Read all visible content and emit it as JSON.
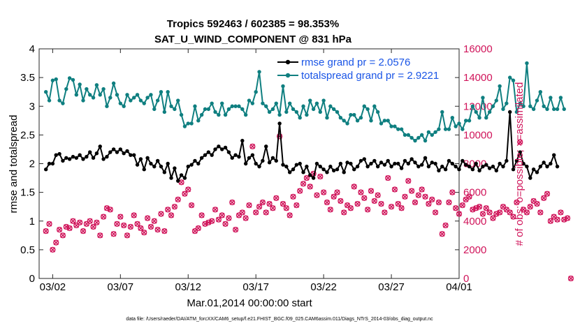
{
  "chart_data": {
    "type": "line",
    "title_line1": "Tropics 592463 / 602385 = 98.353%",
    "title_line2": "SAT_U_WIND_COMPONENT @ 831 hPa",
    "xlabel": "Mar.01,2014 00:00:00 start",
    "ylabel_left": "rmse and totalspread",
    "ylabel_right": "# of obs: o=possible; ×=assimilated",
    "ylim_left": [
      0,
      4
    ],
    "ylim_right": [
      0,
      16000
    ],
    "xlim": [
      1,
      32
    ],
    "yticks_left": [
      "0",
      "0.5",
      "1",
      "1.5",
      "2",
      "2.5",
      "3",
      "3.5",
      "4"
    ],
    "yticks_right": [
      "0",
      "2000",
      "4000",
      "6000",
      "8000",
      "10000",
      "12000",
      "14000",
      "16000"
    ],
    "xticks": [
      {
        "x": 2,
        "label": "03/02"
      },
      {
        "x": 7,
        "label": "03/07"
      },
      {
        "x": 12,
        "label": "03/12"
      },
      {
        "x": 17,
        "label": "03/17"
      },
      {
        "x": 22,
        "label": "03/22"
      },
      {
        "x": 27,
        "label": "03/27"
      },
      {
        "x": 32,
        "label": "04/01"
      }
    ],
    "legend": [
      {
        "label": "rmse grand pr = 2.0576",
        "color": "#000000"
      },
      {
        "label": "totalspread grand pr = 2.9221",
        "color": "#0f7f80"
      }
    ],
    "series": [
      {
        "name": "rmse",
        "color": "#000000",
        "axis": "left",
        "values": [
          1.9,
          2.0,
          2.0,
          2.15,
          2.17,
          2.05,
          2.1,
          2.08,
          2.12,
          2.1,
          2.15,
          2.08,
          2.12,
          2.2,
          2.1,
          2.18,
          2.3,
          2.08,
          2.12,
          2.2,
          2.25,
          2.2,
          2.25,
          2.18,
          2.22,
          2.15,
          2.15,
          1.98,
          2.08,
          1.9,
          2.1,
          2.0,
          1.95,
          2.05,
          1.95,
          1.85,
          2.0,
          1.75,
          1.92,
          1.7,
          1.8,
          1.75,
          1.95,
          1.98,
          2.05,
          2.0,
          2.1,
          2.15,
          2.2,
          2.15,
          2.25,
          2.3,
          2.25,
          2.28,
          2.2,
          2.1,
          2.15,
          2.12,
          2.4,
          2.0,
          2.1,
          2.15,
          2.0,
          1.95,
          2.05,
          2.3,
          2.02,
          2.1,
          2.05,
          2.7,
          1.98,
          1.95,
          1.85,
          1.9,
          1.98,
          2.0,
          1.85,
          1.95,
          1.8,
          1.75,
          2.0,
          1.95,
          1.9,
          1.85,
          1.95,
          1.88,
          1.9,
          2.0,
          1.85,
          2.02,
          2.0,
          1.9,
          1.95,
          2.05,
          2.08,
          1.95,
          2.0,
          2.05,
          1.95,
          2.02,
          1.98,
          2.05,
          1.95,
          2.0,
          2.0,
          1.92,
          2.05,
          2.0,
          2.08,
          2.02,
          1.95,
          1.98,
          2.1,
          1.95,
          2.02,
          2.0,
          1.88,
          1.95,
          1.9,
          2.05,
          2.0,
          1.95,
          1.9,
          2.05,
          1.98,
          1.95,
          1.9,
          2.0,
          1.88,
          1.95,
          1.98,
          1.92,
          1.95,
          1.88,
          2.0,
          1.95,
          2.05,
          2.9,
          1.9,
          2.05,
          2.2,
          2.0,
          1.95,
          1.75,
          1.9,
          1.85,
          1.95,
          2.02,
          1.95,
          2.0,
          2.15,
          1.95
        ]
      },
      {
        "name": "totalspread",
        "color": "#0f7f80",
        "axis": "left",
        "values": [
          3.25,
          3.1,
          3.45,
          3.47,
          3.1,
          3.05,
          3.3,
          3.49,
          3.46,
          3.2,
          3.38,
          3.1,
          3.3,
          3.2,
          3.15,
          3.37,
          3.2,
          3.3,
          3.0,
          3.15,
          3.4,
          3.2,
          3.05,
          3.0,
          3.2,
          3.1,
          3.15,
          3.2,
          3.1,
          3.05,
          3.15,
          3.2,
          2.95,
          3.1,
          3.25,
          2.9,
          3.25,
          3.0,
          2.95,
          3.1,
          2.85,
          2.65,
          2.7,
          2.7,
          3.0,
          2.75,
          2.85,
          2.95,
          2.95,
          3.05,
          2.9,
          2.85,
          3.05,
          2.85,
          2.95,
          3.0,
          3.0,
          3.0,
          2.95,
          2.85,
          3.1,
          3.05,
          3.25,
          3.6,
          3.05,
          3.0,
          2.9,
          2.95,
          3.05,
          2.85,
          3.35,
          2.9,
          3.05,
          2.95,
          2.9,
          2.8,
          3.0,
          2.85,
          3.1,
          2.95,
          3.05,
          2.9,
          3.1,
          2.8,
          3.0,
          2.95,
          2.9,
          2.8,
          2.75,
          2.7,
          2.85,
          2.85,
          2.75,
          2.8,
          3.0,
          2.95,
          2.75,
          3.0,
          2.9,
          2.7,
          2.75,
          2.75,
          2.65,
          2.65,
          2.6,
          2.6,
          2.5,
          2.5,
          2.45,
          2.4,
          2.45,
          2.5,
          2.4,
          2.55,
          2.5,
          2.55,
          2.6,
          2.9,
          2.6,
          2.6,
          2.8,
          2.65,
          2.7,
          2.6,
          2.75,
          2.75,
          3.0,
          2.9,
          2.8,
          3.15,
          2.8,
          2.9,
          3.0,
          3.1,
          3.35,
          2.95,
          3.05,
          3.5,
          3.45,
          2.9,
          3.05,
          3.0,
          3.75,
          3.0,
          2.95,
          3.1,
          3.25,
          3.0,
          2.95,
          3.15,
          2.95,
          2.95,
          3.15,
          2.95
        ]
      },
      {
        "name": "obs_possible",
        "color": "#d0145a",
        "axis": "right",
        "marker": "o",
        "values": [
          3300,
          3800,
          2000,
          2500,
          3400,
          3000,
          3600,
          3500,
          4000,
          3700,
          3900,
          3300,
          3800,
          4000,
          3600,
          3900,
          3000,
          4300,
          4900,
          4800,
          3100,
          3800,
          4300,
          3700,
          3000,
          3600,
          4400,
          3800,
          3500,
          3200,
          4200,
          3600,
          4000,
          3400,
          4500,
          3300,
          4800,
          4400,
          5000,
          5500,
          6700,
          5900,
          6200,
          5100,
          3300,
          3500,
          4400,
          3800,
          3900,
          4000,
          4800,
          4100,
          4400,
          3800,
          4200,
          5300,
          3400,
          4400,
          4600,
          4200,
          5100,
          9200,
          4600,
          5000,
          5300,
          4600,
          5200,
          4900,
          5600,
          9900,
          5200,
          4900,
          4400,
          5700,
          5100,
          6100,
          6600,
          7000,
          6400,
          7300,
          5800,
          7100,
          6000,
          5300,
          4800,
          5700,
          6000,
          5400,
          4600,
          5100,
          4900,
          6400,
          5200,
          6000,
          5600,
          4800,
          6100,
          5400,
          5800,
          5200,
          4600,
          7000,
          5000,
          6200,
          5200,
          4900,
          5700,
          6800,
          6100,
          5300,
          5800,
          6200,
          5700,
          5200,
          5500,
          4600,
          5300,
          3100,
          3700,
          5300,
          6000,
          4900,
          4500,
          5100,
          5500,
          5700,
          4800,
          4900,
          5000,
          4500,
          4900,
          4600,
          4200,
          4500,
          4600,
          5000,
          4800,
          4600,
          4300,
          5300,
          9500,
          4800,
          4600,
          5000,
          5400,
          5200,
          4600,
          5600,
          5900,
          4000,
          4300,
          4100,
          4600,
          4100,
          4200,
          0
        ]
      },
      {
        "name": "obs_assimilated",
        "color": "#d0145a",
        "axis": "right",
        "marker": "x",
        "values": [
          3300,
          3800,
          2000,
          2500,
          3400,
          3000,
          3600,
          3500,
          4000,
          3700,
          3900,
          3300,
          3800,
          4000,
          3600,
          3900,
          3000,
          4300,
          4900,
          4800,
          3100,
          3800,
          4300,
          3700,
          3000,
          3600,
          4400,
          3800,
          3500,
          3200,
          4200,
          3600,
          4000,
          3400,
          4500,
          3300,
          4800,
          4400,
          5000,
          5500,
          6700,
          5900,
          6200,
          5100,
          3300,
          3500,
          4400,
          3800,
          3900,
          4000,
          4800,
          4100,
          4400,
          3800,
          4200,
          5300,
          3400,
          4400,
          4600,
          4200,
          5100,
          9200,
          4600,
          5000,
          5300,
          4600,
          5200,
          4900,
          5600,
          9900,
          5200,
          4900,
          4400,
          5700,
          5100,
          6100,
          6600,
          7000,
          6400,
          7300,
          5800,
          7100,
          6000,
          5300,
          4800,
          5700,
          6000,
          5400,
          4600,
          5100,
          4900,
          6400,
          5200,
          6000,
          5600,
          4800,
          6100,
          5400,
          5800,
          5200,
          4600,
          7000,
          5000,
          6200,
          5200,
          4900,
          5700,
          6800,
          6100,
          5300,
          5800,
          6200,
          5700,
          5200,
          5500,
          4600,
          5300,
          3100,
          3700,
          5300,
          6000,
          4900,
          4500,
          5100,
          5500,
          5700,
          4800,
          4900,
          5000,
          4500,
          4900,
          4600,
          4200,
          4500,
          4600,
          5000,
          4800,
          4600,
          4300,
          5300,
          9500,
          4800,
          4600,
          5000,
          5400,
          5200,
          4600,
          5600,
          5900,
          4000,
          4300,
          4100,
          4600,
          4100,
          4200,
          0
        ]
      }
    ],
    "footnote": "data file: /Users/raeder/DAI/ATM_forcXX/CAM6_setup/f.e21.FHIST_BGC.f09_025.CAM6assim.011/Diags_NTrS_2014-03/obs_diag_output.nc"
  }
}
